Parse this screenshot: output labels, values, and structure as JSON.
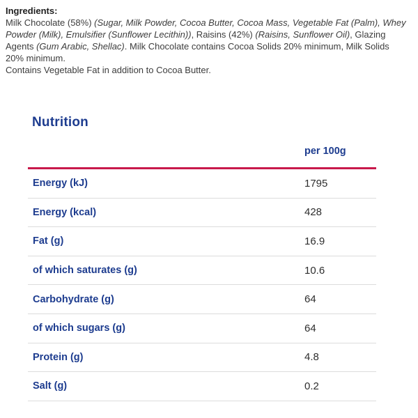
{
  "ingredients": {
    "heading": "Ingredients:",
    "segments": [
      {
        "text": "Milk Chocolate (58%) ",
        "italic": false
      },
      {
        "text": "(Sugar, Milk Powder, Cocoa Butter, Cocoa Mass, Vegetable Fat (Palm), Whey Powder (Milk), Emulsifier (Sunflower Lecithin))",
        "italic": true
      },
      {
        "text": ", Raisins (42%) ",
        "italic": false
      },
      {
        "text": "(Raisins, Sunflower Oil)",
        "italic": true
      },
      {
        "text": ", Glazing Agents ",
        "italic": false
      },
      {
        "text": "(Gum Arabic, Shellac)",
        "italic": true
      },
      {
        "text": ". Milk Chocolate contains Cocoa Solids 20% minimum, Milk Solids 20% minimum.",
        "italic": false
      }
    ],
    "contains_note": "Contains Vegetable Fat in addition to Cocoa Butter."
  },
  "nutrition": {
    "heading": "Nutrition",
    "column_header": "per 100g",
    "rows": [
      {
        "label": "Energy (kJ)",
        "value": "1795"
      },
      {
        "label": "Energy (kcal)",
        "value": "428"
      },
      {
        "label": "Fat (g)",
        "value": "16.9"
      },
      {
        "label": "of which saturates (g)",
        "value": "10.6"
      },
      {
        "label": "Carbohydrate (g)",
        "value": "64"
      },
      {
        "label": "of which sugars (g)",
        "value": "64"
      },
      {
        "label": "Protein (g)",
        "value": "4.8"
      },
      {
        "label": "Salt (g)",
        "value": "0.2"
      }
    ]
  },
  "colors": {
    "brand_navy": "#1d3c8f",
    "accent_red": "#c8194b",
    "body_text": "#3c3c3c",
    "value_text": "#2e2e2e",
    "divider": "#dcdcdc"
  }
}
